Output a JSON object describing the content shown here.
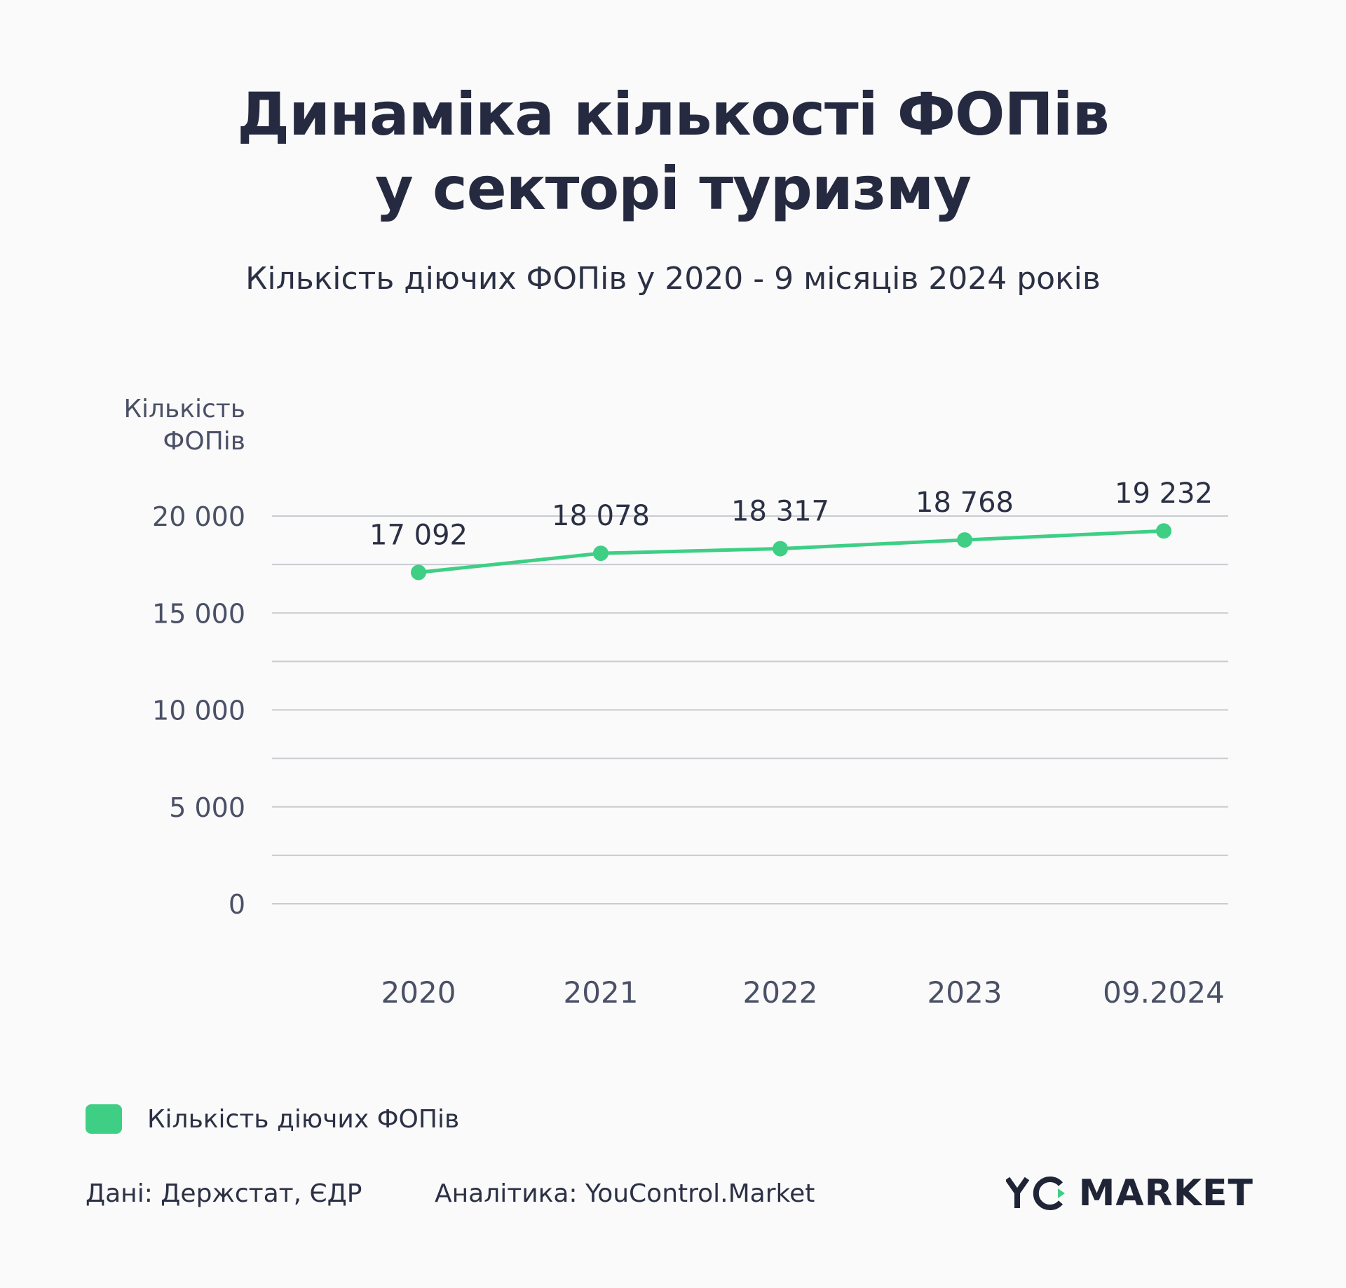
{
  "header": {
    "title_line1": "Динаміка кількості ФОПів",
    "title_line2": "у секторі туризму",
    "subtitle": "Кількість діючих ФОПів у 2020 - 9 місяців 2024 років"
  },
  "legend": {
    "label": "Кількість діючих ФОПів"
  },
  "footer": {
    "source": "Дані: Держстат, ЄДР",
    "analytics": "Аналітика: YouControl.Market",
    "logo_text": "MARKET",
    "logo_mark_text": "YC"
  },
  "colors": {
    "line": "#3ecf85",
    "grid": "#c8cbd0",
    "text": "#2b3044",
    "axis_text": "#4a5066"
  },
  "chart_data": {
    "type": "line",
    "title": "",
    "ylabel_lines": [
      "Кількість",
      "ФОПів"
    ],
    "xlabel": "",
    "categories": [
      "2020",
      "2021",
      "2022",
      "2023",
      "09.2024"
    ],
    "series": [
      {
        "name": "Кількість діючих ФОПів",
        "values": [
          17092,
          18078,
          18317,
          18768,
          19232
        ],
        "labels": [
          "17 092",
          "18 078",
          "18 317",
          "18 768",
          "19 232"
        ]
      }
    ],
    "ylim": [
      0,
      20000
    ],
    "yticks": [
      0,
      5000,
      10000,
      15000,
      20000
    ],
    "ytick_labels": [
      "0",
      "5 000",
      "10 000",
      "15 000",
      "20 000"
    ],
    "grid": true,
    "legend_position": "bottom-left"
  }
}
